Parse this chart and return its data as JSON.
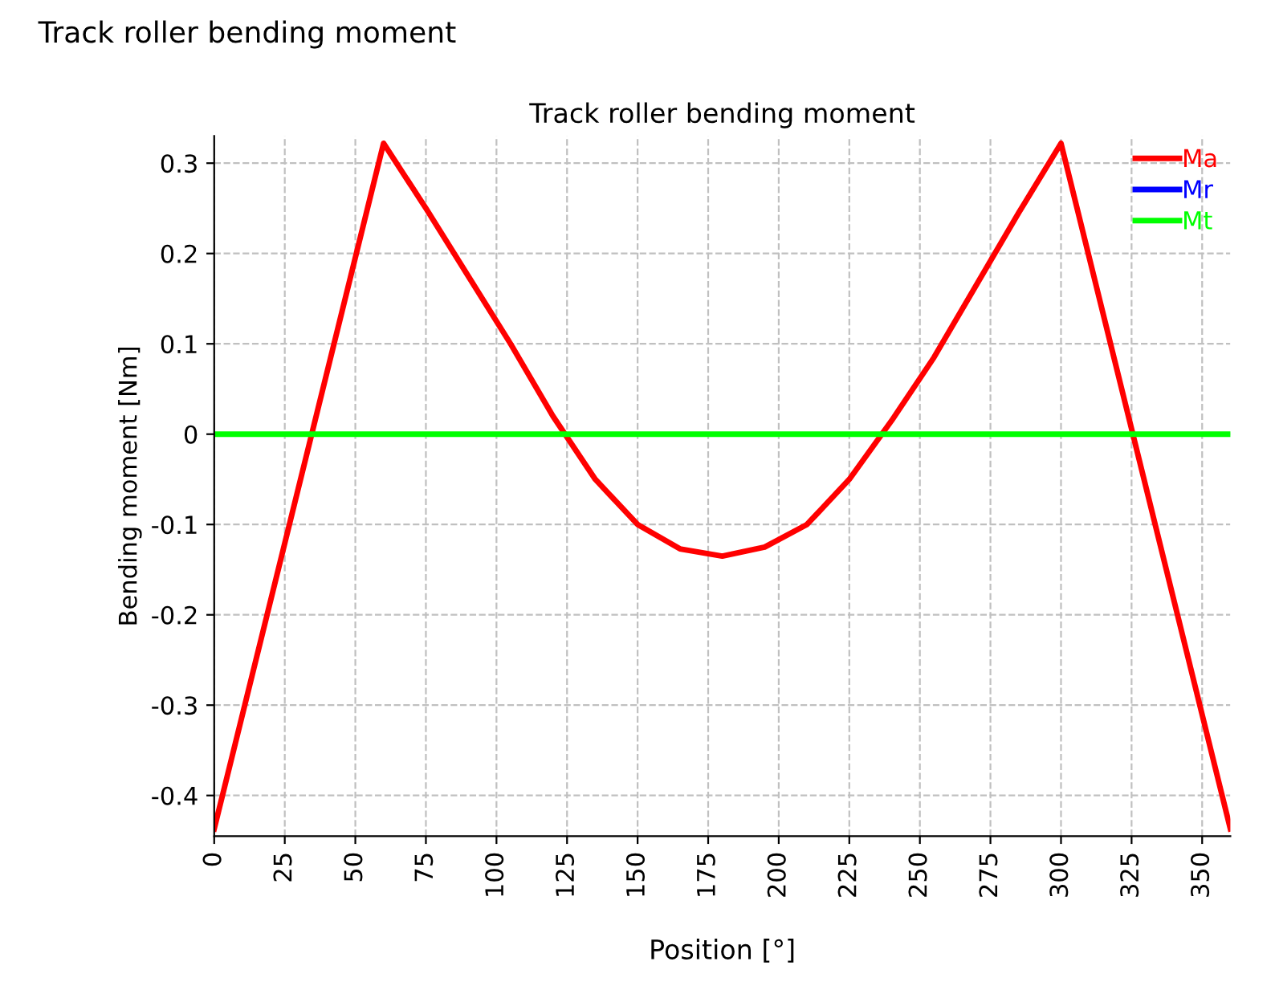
{
  "chart_data": {
    "type": "line",
    "title": "Track roller bending moment",
    "xlabel": "Position [°]",
    "ylabel": "Bending moment [Nm]",
    "annotations": [
      "Track roller bending moment"
    ],
    "series": [
      {
        "name": "Ma",
        "color": "#ff0000",
        "x": [
          0,
          60,
          75,
          90,
          105,
          120,
          135,
          150,
          165,
          180,
          195,
          210,
          225,
          240,
          255,
          270,
          285,
          300,
          360
        ],
        "values": [
          -0.437,
          0.322,
          0.25,
          0.175,
          0.1,
          0.02,
          -0.05,
          -0.1,
          -0.127,
          -0.135,
          -0.125,
          -0.1,
          -0.05,
          0.015,
          0.085,
          0.165,
          0.245,
          0.322,
          -0.437
        ]
      },
      {
        "name": "Mr",
        "color": "#0000ff"
      },
      {
        "name": "Mt",
        "color": "#00ff00",
        "x": [
          0,
          360
        ],
        "values": [
          0,
          0
        ]
      }
    ],
    "xlim": [
      0,
      360
    ],
    "xticks": [
      0,
      25,
      50,
      75,
      100,
      125,
      150,
      175,
      200,
      225,
      250,
      275,
      300,
      325,
      350
    ],
    "ylim": [
      -0.445,
      0.33
    ],
    "yticks": [
      -0.4,
      -0.3,
      -0.2,
      -0.1,
      0,
      0.1,
      0.2,
      0.3
    ],
    "grid": true,
    "legend": "top right",
    "marker": "none",
    "line_style": "solid"
  }
}
